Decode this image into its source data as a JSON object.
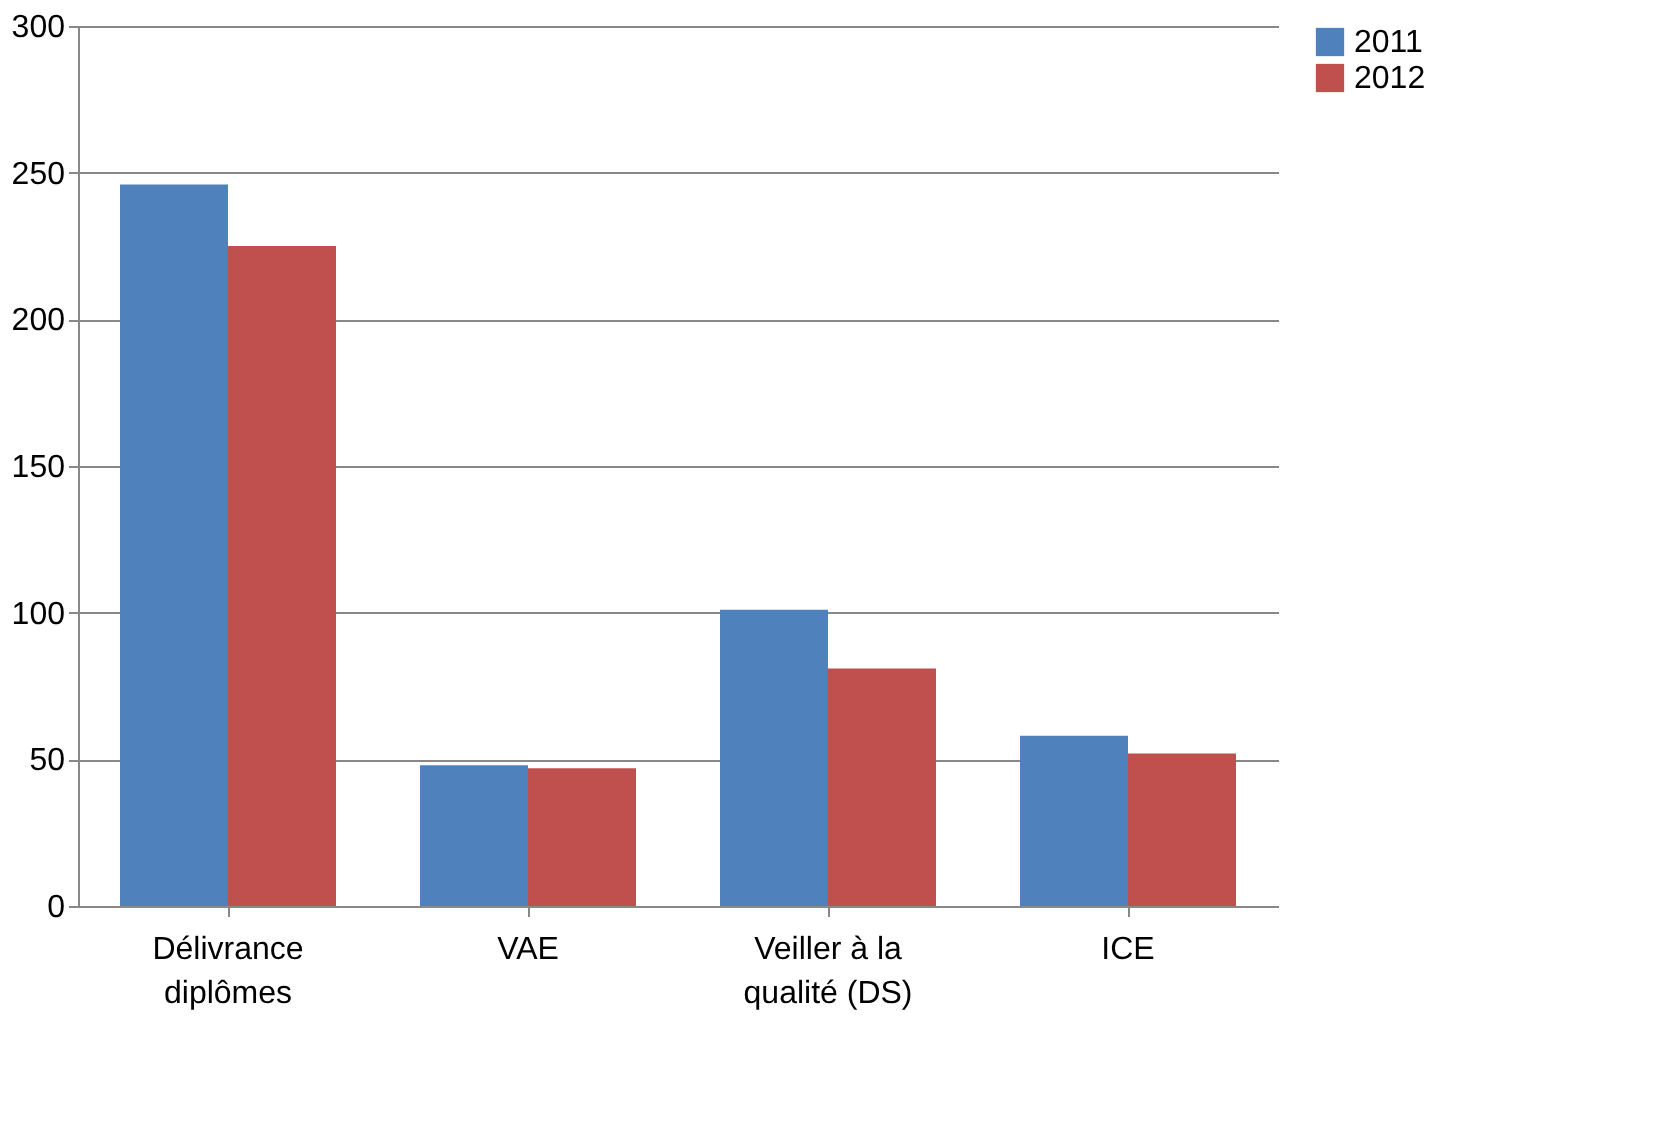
{
  "chart_data": {
    "type": "bar",
    "categories": [
      "Délivrance diplômes",
      "VAE",
      "Veiller à la qualité (DS)",
      "ICE"
    ],
    "series": [
      {
        "name": "2011",
        "color": "#4f81bd",
        "values": [
          246,
          48,
          101,
          58
        ]
      },
      {
        "name": "2012",
        "color": "#c0504d",
        "values": [
          225,
          47,
          81,
          52
        ]
      }
    ],
    "ylim": [
      0,
      300
    ],
    "yticks": [
      0,
      50,
      100,
      150,
      200,
      250,
      300
    ],
    "grid": "y",
    "legend": "right"
  }
}
